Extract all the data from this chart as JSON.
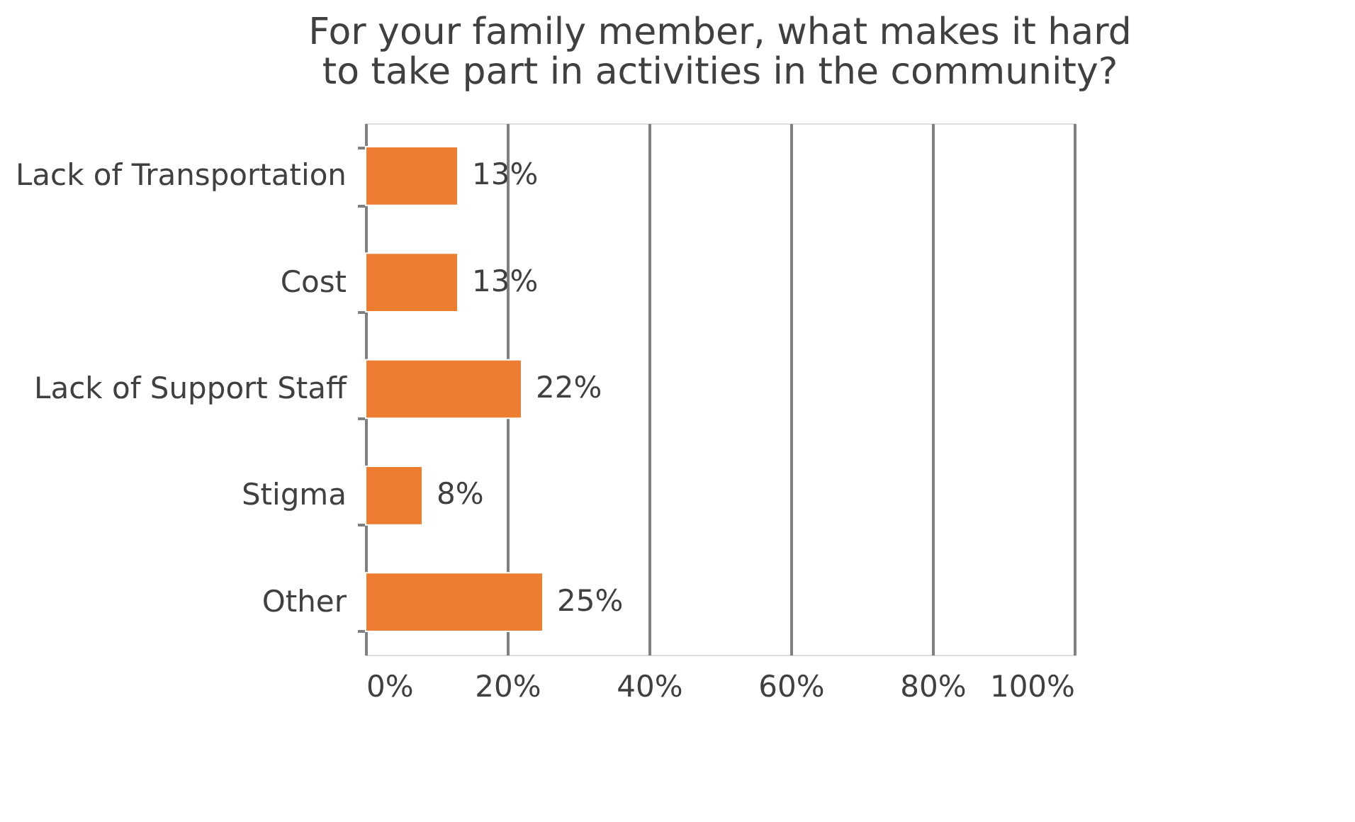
{
  "chart_data": {
    "type": "bar",
    "orientation": "horizontal",
    "title": "For your family member, what makes it hard to take part in activities in the community?",
    "categories": [
      "Lack of Transportation",
      "Cost",
      "Lack of Support Staff",
      "Stigma",
      "Other"
    ],
    "values": [
      13,
      13,
      22,
      8,
      25
    ],
    "value_labels": [
      "13%",
      "13%",
      "22%",
      "8%",
      "25%"
    ],
    "color": "#ed7d31",
    "xlim": [
      0,
      100
    ],
    "xticks": [
      {
        "value": 0,
        "label": "0%"
      },
      {
        "value": 20,
        "label": "20%"
      },
      {
        "value": 40,
        "label": "40%"
      },
      {
        "value": 60,
        "label": "60%"
      },
      {
        "value": 80,
        "label": "80%"
      },
      {
        "value": 100,
        "label": "100%"
      }
    ],
    "grid": "x"
  }
}
